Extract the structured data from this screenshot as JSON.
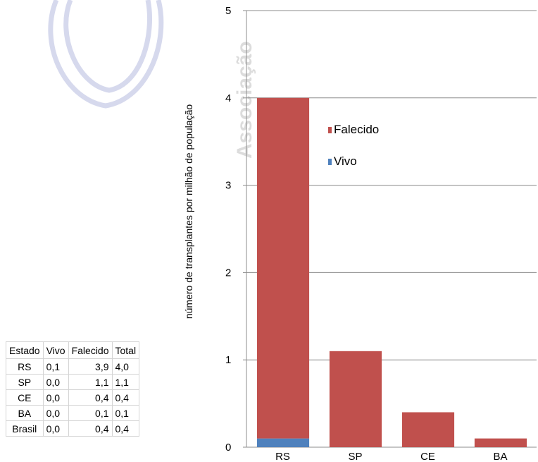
{
  "watermark": {
    "text": "Associação"
  },
  "table": {
    "headers": [
      "Estado",
      "Vivo",
      "Falecido",
      "Total"
    ],
    "rows": [
      [
        "RS",
        "0,1",
        "3,9",
        "4,0"
      ],
      [
        "SP",
        "0,0",
        "1,1",
        "1,1"
      ],
      [
        "CE",
        "0,0",
        "0,4",
        "0,4"
      ],
      [
        "BA",
        "0,0",
        "0,1",
        "0,1"
      ],
      [
        "Brasil",
        "0,0",
        "0,4",
        "0,4"
      ]
    ]
  },
  "chart_data": {
    "type": "bar",
    "stacked": true,
    "title": "",
    "xlabel": "",
    "ylabel": "número de transplantes por milhão de população",
    "ylim": [
      0,
      5
    ],
    "yticks": [
      0,
      1,
      2,
      3,
      4,
      5
    ],
    "grid": true,
    "legend_position": "right",
    "categories": [
      "RS",
      "SP",
      "CE",
      "BA"
    ],
    "series": [
      {
        "name": "Vivo",
        "color": "#4f81bd",
        "values": [
          0.1,
          0.0,
          0.0,
          0.0
        ]
      },
      {
        "name": "Falecido",
        "color": "#c0504d",
        "values": [
          3.9,
          1.1,
          0.4,
          0.1
        ]
      }
    ]
  }
}
